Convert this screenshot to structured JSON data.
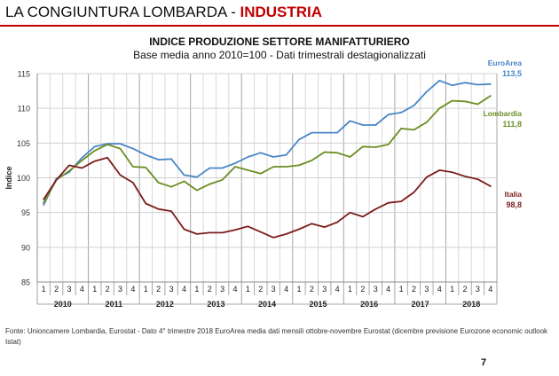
{
  "header": {
    "title_plain": "LA CONGIUNTURA LOMBARDA - ",
    "title_accent": "INDUSTRIA",
    "accent_color": "#c00000"
  },
  "chart_data": {
    "type": "line",
    "title": "INDICE PRODUZIONE SETTORE MANIFATTURIERO",
    "subtitle": "Base media anno 2010=100 - Dati trimestrali destagionalizzati",
    "ylabel": "Indice",
    "ylim": [
      85,
      115
    ],
    "yticks": [
      85,
      90,
      95,
      100,
      105,
      110,
      115
    ],
    "quarters": [
      "1",
      "2",
      "3",
      "4",
      "1",
      "2",
      "3",
      "4",
      "1",
      "2",
      "3",
      "4",
      "1",
      "2",
      "3",
      "4",
      "1",
      "2",
      "3",
      "4",
      "1",
      "2",
      "3",
      "4",
      "1",
      "2",
      "3",
      "4",
      "1",
      "2",
      "3",
      "4",
      "1",
      "2",
      "3",
      "4"
    ],
    "years": [
      "2010",
      "2011",
      "2012",
      "2013",
      "2014",
      "2015",
      "2016",
      "2017",
      "2018"
    ],
    "grid": true,
    "series": [
      {
        "name": "EuroArea",
        "end_label": "113,5",
        "color": "#4a86c8",
        "values": [
          96.1,
          99.9,
          100.8,
          102.9,
          104.5,
          104.9,
          104.9,
          104.2,
          103.3,
          102.6,
          102.7,
          100.4,
          100.1,
          101.4,
          101.4,
          102.1,
          103.0,
          103.6,
          103.0,
          103.3,
          105.5,
          106.5,
          106.5,
          106.5,
          108.2,
          107.6,
          107.6,
          109.1,
          109.4,
          110.4,
          112.4,
          114.0,
          113.3,
          113.7,
          113.4,
          113.5
        ]
      },
      {
        "name": "Lombardia",
        "end_label": "111,8",
        "color": "#6b8e23",
        "values": [
          96.4,
          99.7,
          101.0,
          102.5,
          103.9,
          104.8,
          104.2,
          101.6,
          101.5,
          99.3,
          98.7,
          99.5,
          98.2,
          99.1,
          99.7,
          101.6,
          101.1,
          100.6,
          101.6,
          101.6,
          101.8,
          102.5,
          103.7,
          103.6,
          103.0,
          104.5,
          104.4,
          104.8,
          107.1,
          106.9,
          108.0,
          110.0,
          111.1,
          111.0,
          110.6,
          111.8
        ]
      },
      {
        "name": "Italia",
        "end_label": "98,8",
        "color": "#7b1c1c",
        "values": [
          96.9,
          99.7,
          101.8,
          101.4,
          102.4,
          102.9,
          100.4,
          99.3,
          96.3,
          95.5,
          95.2,
          92.6,
          91.9,
          92.1,
          92.1,
          92.5,
          93.0,
          92.2,
          91.4,
          91.9,
          92.6,
          93.4,
          92.9,
          93.6,
          95.0,
          94.4,
          95.5,
          96.4,
          96.6,
          97.9,
          100.1,
          101.1,
          100.8,
          100.2,
          99.8,
          98.8
        ]
      }
    ]
  },
  "footnote": "Fonte: Unioncamere Lombardia, Eurostat - Dato 4° trimestre 2018 EuroArea media dati mensili ottobre-novembre Eurostat (dicembre previsione Eurozone economic outlook Istat)",
  "page_number": "7"
}
